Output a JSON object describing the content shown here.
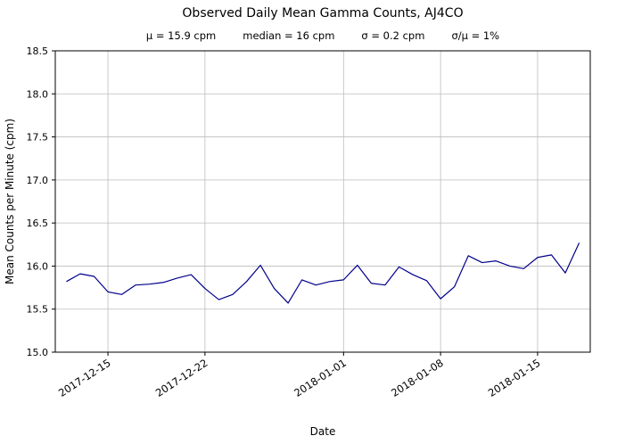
{
  "chart_data": {
    "type": "line",
    "title": "Observed Daily Mean Gamma Counts, AJ4CO",
    "stats_segments": [
      "μ = 15.9 cpm",
      "median = 16 cpm",
      "σ = 0.2 cpm",
      "σ/μ = 1%"
    ],
    "xlabel": "Date",
    "ylabel": "Mean Counts per Minute (cpm)",
    "ylim": [
      15.0,
      18.5
    ],
    "ytick_step": 0.5,
    "grid": true,
    "legend": "none",
    "line_color": "#00008b",
    "grid_color": "#bdbdbd",
    "xticks": [
      "2017-12-15",
      "2017-12-22",
      "2018-01-01",
      "2018-01-08",
      "2018-01-15"
    ],
    "x": [
      "2017-12-12",
      "2017-12-13",
      "2017-12-14",
      "2017-12-15",
      "2017-12-16",
      "2017-12-17",
      "2017-12-18",
      "2017-12-19",
      "2017-12-20",
      "2017-12-21",
      "2017-12-22",
      "2017-12-23",
      "2017-12-24",
      "2017-12-25",
      "2017-12-26",
      "2017-12-27",
      "2017-12-28",
      "2017-12-29",
      "2017-12-30",
      "2017-12-31",
      "2018-01-01",
      "2018-01-02",
      "2018-01-03",
      "2018-01-04",
      "2018-01-05",
      "2018-01-06",
      "2018-01-07",
      "2018-01-08",
      "2018-01-09",
      "2018-01-10",
      "2018-01-11",
      "2018-01-12",
      "2018-01-13",
      "2018-01-14",
      "2018-01-15",
      "2018-01-16",
      "2018-01-17",
      "2018-01-18"
    ],
    "values": [
      15.82,
      15.91,
      15.88,
      15.7,
      15.67,
      15.78,
      15.79,
      15.81,
      15.86,
      15.9,
      15.74,
      15.61,
      15.67,
      15.82,
      16.01,
      15.74,
      15.57,
      15.84,
      15.78,
      15.82,
      15.84,
      16.01,
      15.8,
      15.78,
      15.99,
      15.9,
      15.83,
      15.62,
      15.76,
      16.12,
      16.04,
      16.06,
      16.0,
      15.97,
      16.1,
      16.13,
      15.92,
      16.27
    ]
  }
}
